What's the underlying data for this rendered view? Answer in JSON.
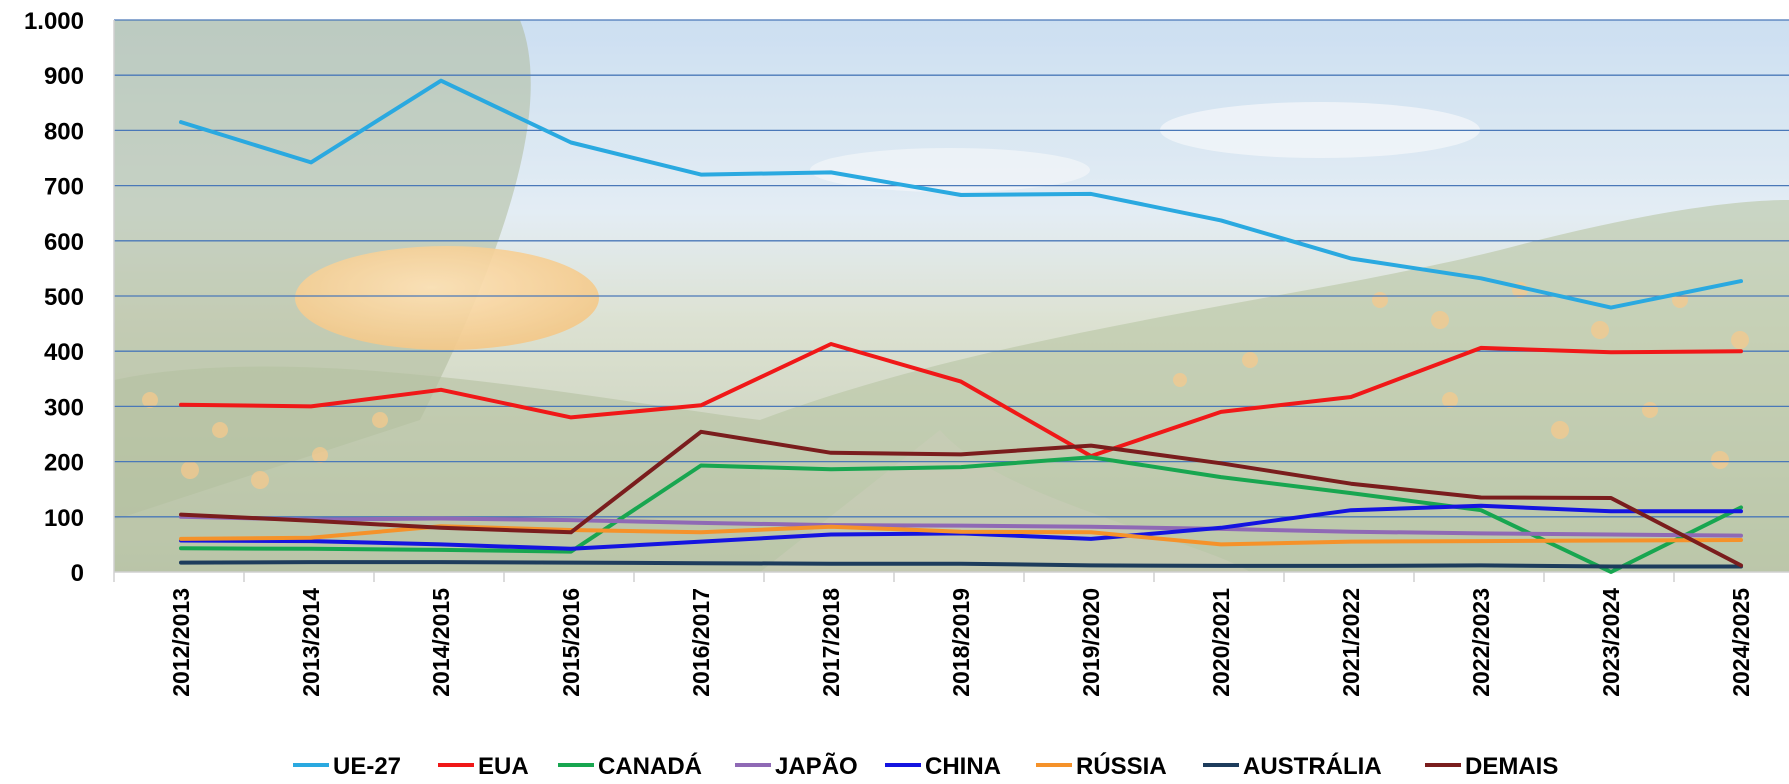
{
  "chart_data": {
    "type": "line",
    "title": "",
    "xlabel": "",
    "ylabel": "",
    "ylim": [
      0,
      1000
    ],
    "y_ticks": [
      {
        "value": 0,
        "label": "0"
      },
      {
        "value": 100,
        "label": "100"
      },
      {
        "value": 200,
        "label": "200"
      },
      {
        "value": 300,
        "label": "300"
      },
      {
        "value": 400,
        "label": "400"
      },
      {
        "value": 500,
        "label": "500"
      },
      {
        "value": 600,
        "label": "600"
      },
      {
        "value": 700,
        "label": "700"
      },
      {
        "value": 800,
        "label": "800"
      },
      {
        "value": 900,
        "label": "900"
      },
      {
        "value": 1000,
        "label": "1.000"
      }
    ],
    "grid": "horizontal",
    "legend_position": "bottom",
    "background": "photo of orange grove (faded)",
    "categories": [
      "2012/2013",
      "2013/2014",
      "2014/2015",
      "2015/2016",
      "2016/2017",
      "2017/2018",
      "2018/2019",
      "2019/2020",
      "2020/2021",
      "2021/2022",
      "2022/2023",
      "2023/2024",
      "2024/2025"
    ],
    "series": [
      {
        "name": "UE-27",
        "color": "#2aa9e0",
        "values": [
          815,
          742,
          890,
          778,
          720,
          724,
          683,
          685,
          637,
          568,
          532,
          479,
          527
        ]
      },
      {
        "name": "EUA",
        "color": "#f01818",
        "values": [
          303,
          300,
          330,
          280,
          302,
          413,
          345,
          210,
          290,
          317,
          406,
          398,
          400
        ]
      },
      {
        "name": "CANADÁ",
        "color": "#18a650",
        "values": [
          43,
          42,
          40,
          37,
          193,
          186,
          190,
          208,
          172,
          143,
          112,
          0,
          117
        ]
      },
      {
        "name": "JAPÃO",
        "color": "#8f69b5",
        "values": [
          100,
          95,
          97,
          94,
          89,
          85,
          84,
          82,
          78,
          73,
          70,
          68,
          66
        ]
      },
      {
        "name": "CHINA",
        "color": "#1414e0",
        "values": [
          57,
          56,
          50,
          42,
          55,
          68,
          70,
          60,
          80,
          112,
          120,
          110,
          110
        ]
      },
      {
        "name": "RÚSSIA",
        "color": "#f5922a",
        "values": [
          60,
          62,
          83,
          76,
          72,
          82,
          73,
          72,
          50,
          55,
          56,
          57,
          58
        ]
      },
      {
        "name": "AUSTRÁLIA",
        "color": "#1d3c5c",
        "values": [
          17,
          18,
          18,
          17,
          16,
          15,
          15,
          12,
          11,
          11,
          12,
          10,
          10
        ]
      },
      {
        "name": "DEMAIS",
        "color": "#7a1d1d",
        "values": [
          104,
          93,
          80,
          72,
          254,
          216,
          213,
          229,
          197,
          160,
          135,
          134,
          12
        ]
      }
    ]
  }
}
